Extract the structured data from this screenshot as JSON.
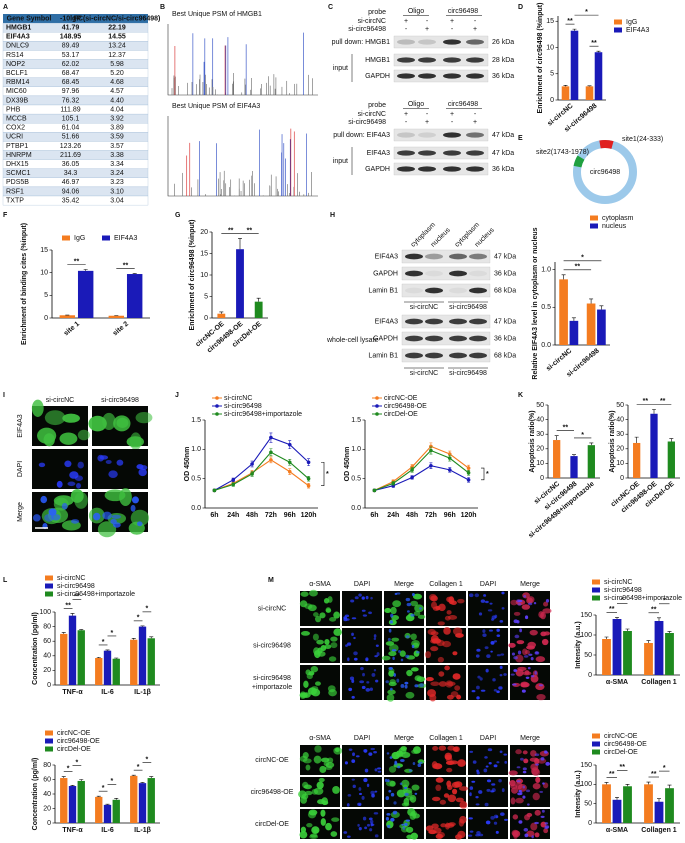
{
  "panel_labels": [
    "A",
    "B",
    "C",
    "D",
    "E",
    "F",
    "G",
    "H",
    "I",
    "J",
    "K",
    "L",
    "M"
  ],
  "table": {
    "header": [
      "Gene Symbol",
      "-10lgP",
      "FC(si-circNC/si-circ96498)"
    ],
    "rows": [
      [
        "HMGB1",
        "41.79",
        "22.19"
      ],
      [
        "EIF4A3",
        "148.95",
        "14.55"
      ],
      [
        "DNLC9",
        "89.49",
        "13.24"
      ],
      [
        "RS14",
        "53.17",
        "12.37"
      ],
      [
        "NOP2",
        "62.02",
        "5.98"
      ],
      [
        "BCLF1",
        "68.47",
        "5.20"
      ],
      [
        "RBM14",
        "68.45",
        "4.68"
      ],
      [
        "MIC60",
        "97.96",
        "4.57"
      ],
      [
        "DX39B",
        "76.32",
        "4.40"
      ],
      [
        "PHB",
        "111.89",
        "4.04"
      ],
      [
        "MCCB",
        "105.1",
        "3.92"
      ],
      [
        "COX2",
        "61.04",
        "3.89"
      ],
      [
        "UCRI",
        "51.66",
        "3.59"
      ],
      [
        "PTBP1",
        "123.26",
        "3.57"
      ],
      [
        "HNRPM",
        "211.69",
        "3.38"
      ],
      [
        "DHX15",
        "36.05",
        "3.34"
      ],
      [
        "SCMC1",
        "34.3",
        "3.24"
      ],
      [
        "PDS5B",
        "46.97",
        "3.23"
      ],
      [
        "RSF1",
        "94.06",
        "3.10"
      ],
      [
        "TXTP",
        "35.42",
        "3.04"
      ]
    ]
  },
  "spectra": {
    "titles": [
      "Best Unique PSM of HMGB1",
      "Best Unique PSM of EIF4A3"
    ]
  },
  "pulldown": {
    "probe_label": "probe",
    "probe_groups": [
      "Oligo",
      "circ96498"
    ],
    "rows": [
      {
        "name": "si-circNC",
        "signs": [
          "+",
          "-",
          "+",
          "-"
        ]
      },
      {
        "name": "si-circ96498",
        "signs": [
          "-",
          "+",
          "-",
          "+"
        ]
      }
    ],
    "blots": [
      {
        "pull_down": "pull down: HMGB1",
        "pull_size": "26 kDa",
        "input": "input",
        "bands": [
          {
            "name": "HMGB1",
            "size": "28 kDa"
          },
          {
            "name": "GAPDH",
            "size": "36 kDa"
          }
        ]
      },
      {
        "pull_down": "pull down: EIF4A3",
        "pull_size": "47 kDa",
        "input": "input",
        "bands": [
          {
            "name": "EIF4A3",
            "size": "47 kDa"
          },
          {
            "name": "GAPDH",
            "size": "36 kDa"
          }
        ]
      }
    ]
  },
  "circle": {
    "name": "circ96498",
    "sites": [
      "site1(24-333)",
      "site2(1743-1978)"
    ]
  },
  "fractionation": {
    "fractions": [
      "cytoplasm",
      "nucleus",
      "cytoplasm",
      "nucleus"
    ],
    "bands": [
      {
        "name": "EIF4A3",
        "size": "47 kDa"
      },
      {
        "name": "GAPDH",
        "size": "36 kDa"
      },
      {
        "name": "Lamin B1",
        "size": "68 kDa"
      }
    ],
    "groups": [
      "si-circNC",
      "si-circ96498"
    ],
    "lysate_label": "whole-cell lysate",
    "lysate_bands": [
      {
        "name": "EIF4A3",
        "size": "47 kDa"
      },
      {
        "name": "GAPDH",
        "size": "36 kDa"
      },
      {
        "name": "Lamin B1",
        "size": "68 kDa"
      }
    ],
    "lysate_groups": [
      "si-circNC",
      "si-circ96498"
    ]
  },
  "immunofluorescence": {
    "columns": [
      "si-circNC",
      "si-circ96498"
    ],
    "rows": [
      "EIF4A3",
      "DAPI",
      "Merge"
    ]
  },
  "fibrosis_images": [
    {
      "columns": [
        "α-SMA",
        "DAPI",
        "Merge",
        "Collagen 1",
        "DAPI",
        "Merge"
      ],
      "rows": [
        [
          "si-circNC"
        ],
        [
          "si-circ96498"
        ],
        [
          "si-circ96498",
          "+importazole"
        ]
      ]
    },
    {
      "columns": [
        "α-SMA",
        "DAPI",
        "Merge",
        "Collagen 1",
        "DAPI",
        "Merge"
      ],
      "rows": [
        [
          "circNC-OE"
        ],
        [
          "circ96498-OE"
        ],
        [
          "circDel-OE"
        ]
      ]
    }
  ],
  "chart_data": [
    {
      "type": "bar",
      "y_label": "Enrichment of circ96498 (%input)",
      "categories": [
        "si-circNC",
        "si-circ96498"
      ],
      "series": [
        {
          "name": "IgG",
          "color": "#f47c20",
          "values": [
            2.6,
            2.6
          ],
          "errors": [
            0.2,
            0.1
          ]
        },
        {
          "name": "EIF4A3",
          "color": "#1a1ab8",
          "values": [
            13.2,
            9.1
          ],
          "errors": [
            0.3,
            0.2
          ]
        }
      ],
      "ylim": [
        0,
        16
      ],
      "yticks": [
        0,
        5,
        10,
        15
      ],
      "annotations": [
        "**",
        "**",
        "*"
      ]
    },
    {
      "type": "bar",
      "y_label": "Enrichment of binding cites (%input)",
      "categories": [
        "site 1",
        "site 2"
      ],
      "series": [
        {
          "name": "IgG",
          "color": "#f47c20",
          "values": [
            0.6,
            0.5
          ],
          "errors": [
            0.05,
            0.05
          ]
        },
        {
          "name": "EIF4A3",
          "color": "#1a1ab8",
          "values": [
            10.4,
            9.7
          ],
          "errors": [
            0.3,
            0.1
          ]
        }
      ],
      "ylim": [
        0,
        15
      ],
      "yticks": [
        0,
        5,
        10,
        15
      ],
      "annotations": [
        "**",
        "**"
      ]
    },
    {
      "type": "bar",
      "y_label": "Enrichment of circ96498 (%input)",
      "categories": [
        "circNC-OE",
        "circ96498-OE",
        "circDel-OE"
      ],
      "values": [
        1,
        16,
        3.8
      ],
      "errors": [
        0.4,
        2.5,
        0.8
      ],
      "colors": [
        "#f47c20",
        "#1a1ab8",
        "#1f8a1f"
      ],
      "ylim": [
        0,
        20
      ],
      "yticks": [
        0,
        5,
        10,
        15,
        20
      ],
      "annotations": [
        "**",
        "**"
      ]
    },
    {
      "type": "bar",
      "y_label": "Relative EIF4A3 level in cytoplasm or nucleus",
      "categories": [
        "si-circNC",
        "si-circ96498"
      ],
      "series": [
        {
          "name": "cytoplasm",
          "color": "#f47c20",
          "values": [
            0.87,
            0.55
          ],
          "errors": [
            0.06,
            0.06
          ]
        },
        {
          "name": "nucleus",
          "color": "#1a1ab8",
          "values": [
            0.32,
            0.47
          ],
          "errors": [
            0.04,
            0.05
          ]
        }
      ],
      "ylim": [
        0,
        1.1
      ],
      "yticks": [
        {
          "value": 0,
          "label": "0.0"
        },
        0.5,
        {
          "value": 1,
          "label": "1.0"
        }
      ],
      "annotations": [
        "**",
        "*"
      ]
    },
    {
      "type": "line",
      "y_label": "OD 450nm",
      "categories": [
        "6h",
        "24h",
        "48h",
        "72h",
        "96h",
        "120h"
      ],
      "series": [
        {
          "name": "si-circNC",
          "color": "#f47c20",
          "values": [
            0.3,
            0.42,
            0.6,
            0.82,
            0.62,
            0.38
          ],
          "errors": [
            0.02,
            0.03,
            0.04,
            0.05,
            0.05,
            0.04
          ]
        },
        {
          "name": "si-circ96498",
          "color": "#1a1ab8",
          "values": [
            0.3,
            0.48,
            0.75,
            1.2,
            1.08,
            0.78
          ],
          "errors": [
            0.02,
            0.03,
            0.05,
            0.08,
            0.07,
            0.06
          ]
        },
        {
          "name": "si-circ96498+importazole",
          "color": "#1f8a1f",
          "values": [
            0.3,
            0.4,
            0.58,
            0.95,
            0.78,
            0.5
          ],
          "errors": [
            0.02,
            0.03,
            0.04,
            0.06,
            0.05,
            0.04
          ]
        }
      ],
      "ylim": [
        0,
        1.5
      ],
      "yticks": [
        {
          "value": 0,
          "label": "0.0"
        },
        0.5,
        {
          "value": 1,
          "label": "1.0"
        },
        1.5
      ],
      "annotations": [
        "*"
      ]
    },
    {
      "type": "line",
      "y_label": "OD 450nm",
      "categories": [
        "6h",
        "24h",
        "48h",
        "72h",
        "96h",
        "120h"
      ],
      "series": [
        {
          "name": "circNC-OE",
          "color": "#f47c20",
          "values": [
            0.3,
            0.45,
            0.7,
            1.05,
            0.92,
            0.68
          ],
          "errors": [
            0.02,
            0.03,
            0.04,
            0.06,
            0.05,
            0.05
          ]
        },
        {
          "name": "circ96498-OE",
          "color": "#1a1ab8",
          "values": [
            0.3,
            0.38,
            0.52,
            0.72,
            0.65,
            0.48
          ],
          "errors": [
            0.02,
            0.03,
            0.03,
            0.05,
            0.04,
            0.04
          ]
        },
        {
          "name": "circDel-OE",
          "color": "#1f8a1f",
          "values": [
            0.3,
            0.42,
            0.65,
            0.98,
            0.85,
            0.6
          ],
          "errors": [
            0.02,
            0.03,
            0.04,
            0.06,
            0.05,
            0.04
          ]
        }
      ],
      "ylim": [
        0,
        1.5
      ],
      "yticks": [
        {
          "value": 0,
          "label": "0.0"
        },
        0.5,
        {
          "value": 1,
          "label": "1.0"
        },
        1.5
      ],
      "annotations": [
        "*"
      ]
    },
    {
      "type": "bar",
      "y_label": "Apoptosis ratio(%)",
      "categories": [
        "si-circNC",
        "si-circ96498",
        "si-circ96498+importazole"
      ],
      "values": [
        26,
        15,
        22.5
      ],
      "errors": [
        3,
        1,
        1.5
      ],
      "colors": [
        "#f47c20",
        "#1a1ab8",
        "#1f8a1f"
      ],
      "ylim": [
        0,
        50
      ],
      "yticks": [
        0,
        10,
        20,
        30,
        40,
        50
      ],
      "annotations": [
        "**",
        "*"
      ]
    },
    {
      "type": "bar",
      "y_label": "Apoptosis ratio(%)",
      "categories": [
        "circNC-OE",
        "circ96498-OE",
        "circDel-OE"
      ],
      "values": [
        24,
        44,
        25
      ],
      "errors": [
        4,
        3,
        2
      ],
      "colors": [
        "#f47c20",
        "#1a1ab8",
        "#1f8a1f"
      ],
      "ylim": [
        0,
        50
      ],
      "yticks": [
        0,
        10,
        20,
        30,
        40,
        50
      ],
      "annotations": [
        "**",
        "**"
      ]
    },
    {
      "type": "bar",
      "y_label": "Concentration (pg/ml)",
      "categories": [
        "TNF-α",
        "IL-6",
        "IL-1β"
      ],
      "series": [
        {
          "name": "si-circNC",
          "color": "#f47c20",
          "values": [
            70,
            37,
            62
          ],
          "errors": [
            2,
            1,
            2
          ]
        },
        {
          "name": "si-circ96498",
          "color": "#1a1ab8",
          "values": [
            95,
            47,
            80
          ],
          "errors": [
            3,
            1,
            1
          ]
        },
        {
          "name": "si-circ96498+importazole",
          "color": "#1f8a1f",
          "values": [
            75,
            36,
            64
          ],
          "errors": [
            1,
            1,
            2
          ]
        }
      ],
      "ylim": [
        0,
        100
      ],
      "yticks": [
        0,
        20,
        40,
        60,
        80,
        100
      ],
      "annotations": [
        "**",
        "**",
        "*",
        "*",
        "*",
        "*"
      ]
    },
    {
      "type": "bar",
      "y_label": "Concentration (pg/ml)",
      "categories": [
        "TNF-α",
        "IL-6",
        "IL-1β"
      ],
      "series": [
        {
          "name": "circNC-OE",
          "color": "#f47c20",
          "values": [
            62,
            36,
            65
          ],
          "errors": [
            2,
            1,
            1
          ]
        },
        {
          "name": "circ96498-OE",
          "color": "#1a1ab8",
          "values": [
            51,
            25,
            55
          ],
          "errors": [
            1,
            1,
            1
          ]
        },
        {
          "name": "circDel-OE",
          "color": "#1f8a1f",
          "values": [
            58,
            32,
            62
          ],
          "errors": [
            2,
            2,
            2
          ]
        }
      ],
      "ylim": [
        0,
        80
      ],
      "yticks": [
        0,
        20,
        40,
        60,
        80
      ],
      "annotations": [
        "*",
        "*",
        "*",
        "*",
        "*",
        "*"
      ]
    },
    {
      "type": "bar",
      "y_label": "Intensity (a.u.)",
      "categories": [
        "α-SMA",
        "Collagen 1"
      ],
      "series": [
        {
          "name": "si-circNC",
          "color": "#f47c20",
          "values": [
            90,
            80
          ],
          "errors": [
            5,
            6
          ]
        },
        {
          "name": "si-circ96498",
          "color": "#1a1ab8",
          "values": [
            140,
            135
          ],
          "errors": [
            4,
            8
          ]
        },
        {
          "name": "si-circ96498+importazole",
          "color": "#1f8a1f",
          "values": [
            110,
            105
          ],
          "errors": [
            5,
            4
          ]
        }
      ],
      "ylim": [
        0,
        150
      ],
      "yticks": [
        0,
        50,
        100,
        150
      ],
      "annotations": [
        "**",
        "*",
        "**",
        "*"
      ]
    },
    {
      "type": "bar",
      "y_label": "Intensity (a.u.)",
      "categories": [
        "α-SMA",
        "Collagen 1"
      ],
      "series": [
        {
          "name": "circNC-OE",
          "color": "#f47c20",
          "values": [
            100,
            100
          ],
          "errors": [
            5,
            6
          ]
        },
        {
          "name": "circ96498-OE",
          "color": "#1a1ab8",
          "values": [
            60,
            55
          ],
          "errors": [
            6,
            8
          ]
        },
        {
          "name": "circDel-OE",
          "color": "#1f8a1f",
          "values": [
            95,
            90
          ],
          "errors": [
            5,
            8
          ]
        }
      ],
      "ylim": [
        0,
        150
      ],
      "yticks": [
        0,
        50,
        100,
        150
      ],
      "annotations": [
        "**",
        "**",
        "**",
        "*"
      ]
    }
  ]
}
